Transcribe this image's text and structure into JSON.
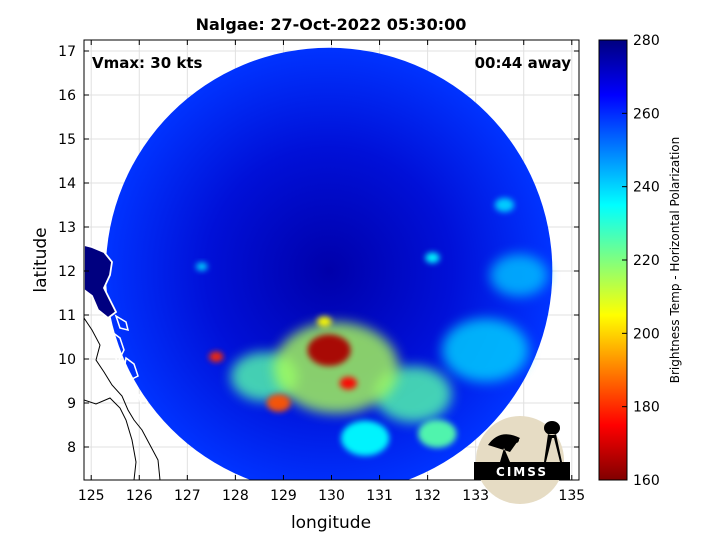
{
  "title": "Nalgae: 27-Oct-2022 05:30:00",
  "vmax_label": "Vmax: 30 kts",
  "time_label": "00:44 away",
  "logo_text": "CIMSS",
  "chart_data": {
    "type": "heatmap",
    "title": "Nalgae: 27-Oct-2022 05:30:00",
    "xlabel": "longitude",
    "ylabel": "latitude",
    "xlim": [
      124.85,
      135.15
    ],
    "ylim": [
      7.25,
      17.25
    ],
    "xticks": [
      "125",
      "126",
      "127",
      "128",
      "129",
      "130",
      "131",
      "132",
      "133",
      "134",
      "135"
    ],
    "yticks": [
      "8",
      "9",
      "10",
      "11",
      "12",
      "13",
      "14",
      "15",
      "16",
      "17"
    ],
    "grid": true,
    "colorbar": {
      "label": "Brightness Temp - Horizontal Polarization",
      "range": [
        160,
        280
      ],
      "ticks": [
        "160",
        "180",
        "200",
        "220",
        "240",
        "260",
        "280"
      ],
      "colormap": "jet"
    },
    "swath": {
      "center_lon": 129.95,
      "center_lat": 12.0,
      "radius_deg": 4.85
    },
    "features": [
      {
        "lon": 129.95,
        "lat": 10.2,
        "radius_deg": 0.45,
        "value": 165
      },
      {
        "lon": 130.35,
        "lat": 9.45,
        "radius_deg": 0.18,
        "value": 175
      },
      {
        "lon": 128.9,
        "lat": 9.0,
        "radius_deg": 0.25,
        "value": 185
      },
      {
        "lon": 127.6,
        "lat": 10.05,
        "radius_deg": 0.15,
        "value": 180
      },
      {
        "lon": 129.85,
        "lat": 10.85,
        "radius_deg": 0.15,
        "value": 205
      },
      {
        "lon": 130.1,
        "lat": 9.8,
        "radius_deg": 1.3,
        "value": 215
      },
      {
        "lon": 131.7,
        "lat": 9.2,
        "radius_deg": 0.8,
        "value": 225
      },
      {
        "lon": 128.6,
        "lat": 9.6,
        "radius_deg": 0.7,
        "value": 225
      },
      {
        "lon": 132.2,
        "lat": 8.3,
        "radius_deg": 0.4,
        "value": 225
      },
      {
        "lon": 130.7,
        "lat": 8.2,
        "radius_deg": 0.5,
        "value": 235
      },
      {
        "lon": 133.2,
        "lat": 10.2,
        "radius_deg": 0.9,
        "value": 240
      },
      {
        "lon": 132.1,
        "lat": 12.3,
        "radius_deg": 0.15,
        "value": 235
      },
      {
        "lon": 133.6,
        "lat": 13.5,
        "radius_deg": 0.2,
        "value": 240
      },
      {
        "lon": 133.9,
        "lat": 11.9,
        "radius_deg": 0.6,
        "value": 242
      },
      {
        "lon": 127.3,
        "lat": 12.1,
        "radius_deg": 0.12,
        "value": 240
      }
    ]
  }
}
